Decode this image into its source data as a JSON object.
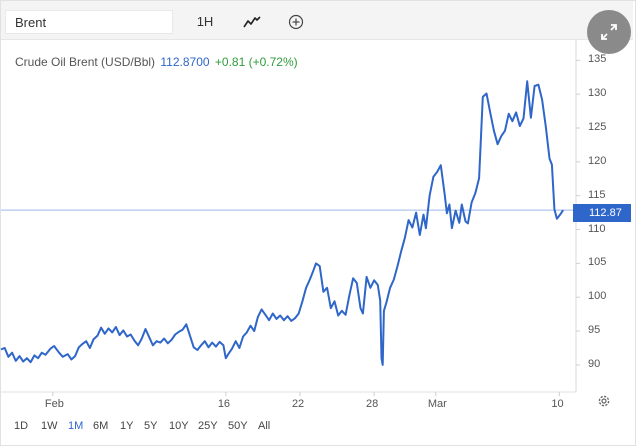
{
  "toolbar": {
    "search_value": "Brent",
    "interval_label": "1H",
    "line_icon": "line-chart-icon",
    "add_icon": "plus-circle-icon",
    "expand_icon": "expand-arrows-icon"
  },
  "header": {
    "instrument": "Crude Oil Brent (USD/Bbl)",
    "price": "112.8700",
    "change": "+0.81 (+0.72%)"
  },
  "price_tag": "112.87",
  "ranges": [
    {
      "label": "1D",
      "active": false
    },
    {
      "label": "1W",
      "active": false
    },
    {
      "label": "1M",
      "active": true
    },
    {
      "label": "6M",
      "active": false
    },
    {
      "label": "1Y",
      "active": false
    },
    {
      "label": "5Y",
      "active": false
    },
    {
      "label": "10Y",
      "active": false
    },
    {
      "label": "25Y",
      "active": false
    },
    {
      "label": "50Y",
      "active": false
    },
    {
      "label": "All",
      "active": false
    }
  ],
  "settings_icon": "gear-icon",
  "colors": {
    "line": "#2f66c9",
    "positive": "#2e9c3a",
    "toolbar_bg": "#f4f4f4",
    "expand_bg": "#8a8a8a"
  },
  "chart_data": {
    "type": "line",
    "title": "Crude Oil Brent (USD/Bbl)",
    "xlabel": "",
    "ylabel": "",
    "y_ticks": [
      90,
      95,
      100,
      105,
      110,
      115,
      120,
      125,
      130,
      135
    ],
    "ylim": [
      86,
      138
    ],
    "x_ticks": [
      {
        "label": "Feb",
        "x": 7
      },
      {
        "label": "16",
        "x": 21
      },
      {
        "label": "22",
        "x": 27
      },
      {
        "label": "28",
        "x": 33
      },
      {
        "label": "Mar",
        "x": 38
      },
      {
        "label": "10",
        "x": 48
      }
    ],
    "xlim": [
      2.8,
      48.7
    ],
    "current_value": 112.87,
    "grid": false,
    "series": [
      {
        "values": [
          [
            2.8,
            92.3
          ],
          [
            3.1,
            92.5
          ],
          [
            3.4,
            91.2
          ],
          [
            3.7,
            91.8
          ],
          [
            4.0,
            90.6
          ],
          [
            4.3,
            91.3
          ],
          [
            4.6,
            90.5
          ],
          [
            4.9,
            91.0
          ],
          [
            5.2,
            90.4
          ],
          [
            5.5,
            91.4
          ],
          [
            5.8,
            91.0
          ],
          [
            6.1,
            91.8
          ],
          [
            6.4,
            91.5
          ],
          [
            6.8,
            92.4
          ],
          [
            7.1,
            92.8
          ],
          [
            7.5,
            91.8
          ],
          [
            7.8,
            91.2
          ],
          [
            8.2,
            91.6
          ],
          [
            8.5,
            90.8
          ],
          [
            8.8,
            91.3
          ],
          [
            9.1,
            92.6
          ],
          [
            9.4,
            93.1
          ],
          [
            9.7,
            93.5
          ],
          [
            10.0,
            92.5
          ],
          [
            10.3,
            93.8
          ],
          [
            10.6,
            94.3
          ],
          [
            10.9,
            95.5
          ],
          [
            11.2,
            94.6
          ],
          [
            11.5,
            95.4
          ],
          [
            11.8,
            94.8
          ],
          [
            12.1,
            95.6
          ],
          [
            12.4,
            94.4
          ],
          [
            12.7,
            95.1
          ],
          [
            13.0,
            94.2
          ],
          [
            13.3,
            94.5
          ],
          [
            13.6,
            93.6
          ],
          [
            13.9,
            92.9
          ],
          [
            14.2,
            93.9
          ],
          [
            14.5,
            95.3
          ],
          [
            14.8,
            94.1
          ],
          [
            15.1,
            92.9
          ],
          [
            15.4,
            93.5
          ],
          [
            15.7,
            93.3
          ],
          [
            16.0,
            93.9
          ],
          [
            16.3,
            93.2
          ],
          [
            16.6,
            93.7
          ],
          [
            16.9,
            94.5
          ],
          [
            17.2,
            94.9
          ],
          [
            17.5,
            95.2
          ],
          [
            17.8,
            96.0
          ],
          [
            18.1,
            94.3
          ],
          [
            18.4,
            92.6
          ],
          [
            18.7,
            92.2
          ],
          [
            19.0,
            92.9
          ],
          [
            19.3,
            93.5
          ],
          [
            19.6,
            92.6
          ],
          [
            19.9,
            93.3
          ],
          [
            20.2,
            92.7
          ],
          [
            20.5,
            93.4
          ],
          [
            20.8,
            92.9
          ],
          [
            21.0,
            91.0
          ],
          [
            21.2,
            91.6
          ],
          [
            21.5,
            92.4
          ],
          [
            21.8,
            93.5
          ],
          [
            22.1,
            92.5
          ],
          [
            22.4,
            94.2
          ],
          [
            22.7,
            94.8
          ],
          [
            23.0,
            95.8
          ],
          [
            23.3,
            95.0
          ],
          [
            23.6,
            97.1
          ],
          [
            23.9,
            98.2
          ],
          [
            24.2,
            97.4
          ],
          [
            24.5,
            96.6
          ],
          [
            24.8,
            97.6
          ],
          [
            25.1,
            96.8
          ],
          [
            25.4,
            97.3
          ],
          [
            25.7,
            96.6
          ],
          [
            26.0,
            97.2
          ],
          [
            26.3,
            96.5
          ],
          [
            26.6,
            96.9
          ],
          [
            26.9,
            97.6
          ],
          [
            27.2,
            99.4
          ],
          [
            27.5,
            101.4
          ],
          [
            27.8,
            102.6
          ],
          [
            28.1,
            104.0
          ],
          [
            28.3,
            105.0
          ],
          [
            28.6,
            104.6
          ],
          [
            28.9,
            100.8
          ],
          [
            29.2,
            101.4
          ],
          [
            29.5,
            98.4
          ],
          [
            29.8,
            99.4
          ],
          [
            30.1,
            97.3
          ],
          [
            30.4,
            98.0
          ],
          [
            30.7,
            97.4
          ],
          [
            31.0,
            100.3
          ],
          [
            31.3,
            102.8
          ],
          [
            31.6,
            102.1
          ],
          [
            31.9,
            98.4
          ],
          [
            32.1,
            97.6
          ],
          [
            32.4,
            103.0
          ],
          [
            32.7,
            101.4
          ],
          [
            33.0,
            102.5
          ],
          [
            33.3,
            101.8
          ],
          [
            33.5,
            99.5
          ],
          [
            33.6,
            91.0
          ],
          [
            33.7,
            90.0
          ],
          [
            33.8,
            98.0
          ],
          [
            34.0,
            99.2
          ],
          [
            34.3,
            101.4
          ],
          [
            34.6,
            102.6
          ],
          [
            34.9,
            104.6
          ],
          [
            35.2,
            106.8
          ],
          [
            35.5,
            108.8
          ],
          [
            35.8,
            111.4
          ],
          [
            36.1,
            110.3
          ],
          [
            36.4,
            112.5
          ],
          [
            36.7,
            109.2
          ],
          [
            37.0,
            112.2
          ],
          [
            37.2,
            110.2
          ],
          [
            37.5,
            115.0
          ],
          [
            37.8,
            117.8
          ],
          [
            38.1,
            118.5
          ],
          [
            38.4,
            119.5
          ],
          [
            38.7,
            115.4
          ],
          [
            38.9,
            112.4
          ],
          [
            39.1,
            113.7
          ],
          [
            39.3,
            110.2
          ],
          [
            39.6,
            112.8
          ],
          [
            39.9,
            111.0
          ],
          [
            40.1,
            113.7
          ],
          [
            40.4,
            111.2
          ],
          [
            40.6,
            110.9
          ],
          [
            40.9,
            114.0
          ],
          [
            41.2,
            115.4
          ],
          [
            41.5,
            117.6
          ],
          [
            41.8,
            129.6
          ],
          [
            42.1,
            130.1
          ],
          [
            42.4,
            127.3
          ],
          [
            42.7,
            124.6
          ],
          [
            43.0,
            122.6
          ],
          [
            43.3,
            123.8
          ],
          [
            43.6,
            124.6
          ],
          [
            43.9,
            127.1
          ],
          [
            44.2,
            126.0
          ],
          [
            44.5,
            127.3
          ],
          [
            44.8,
            125.3
          ],
          [
            45.1,
            126.4
          ],
          [
            45.4,
            131.9
          ],
          [
            45.7,
            126.5
          ],
          [
            46.0,
            131.2
          ],
          [
            46.3,
            131.4
          ],
          [
            46.6,
            129.2
          ],
          [
            46.9,
            125.2
          ],
          [
            47.2,
            120.5
          ],
          [
            47.4,
            119.6
          ],
          [
            47.6,
            113.0
          ],
          [
            47.8,
            111.6
          ],
          [
            48.1,
            112.3
          ],
          [
            48.3,
            112.87
          ]
        ]
      }
    ]
  }
}
